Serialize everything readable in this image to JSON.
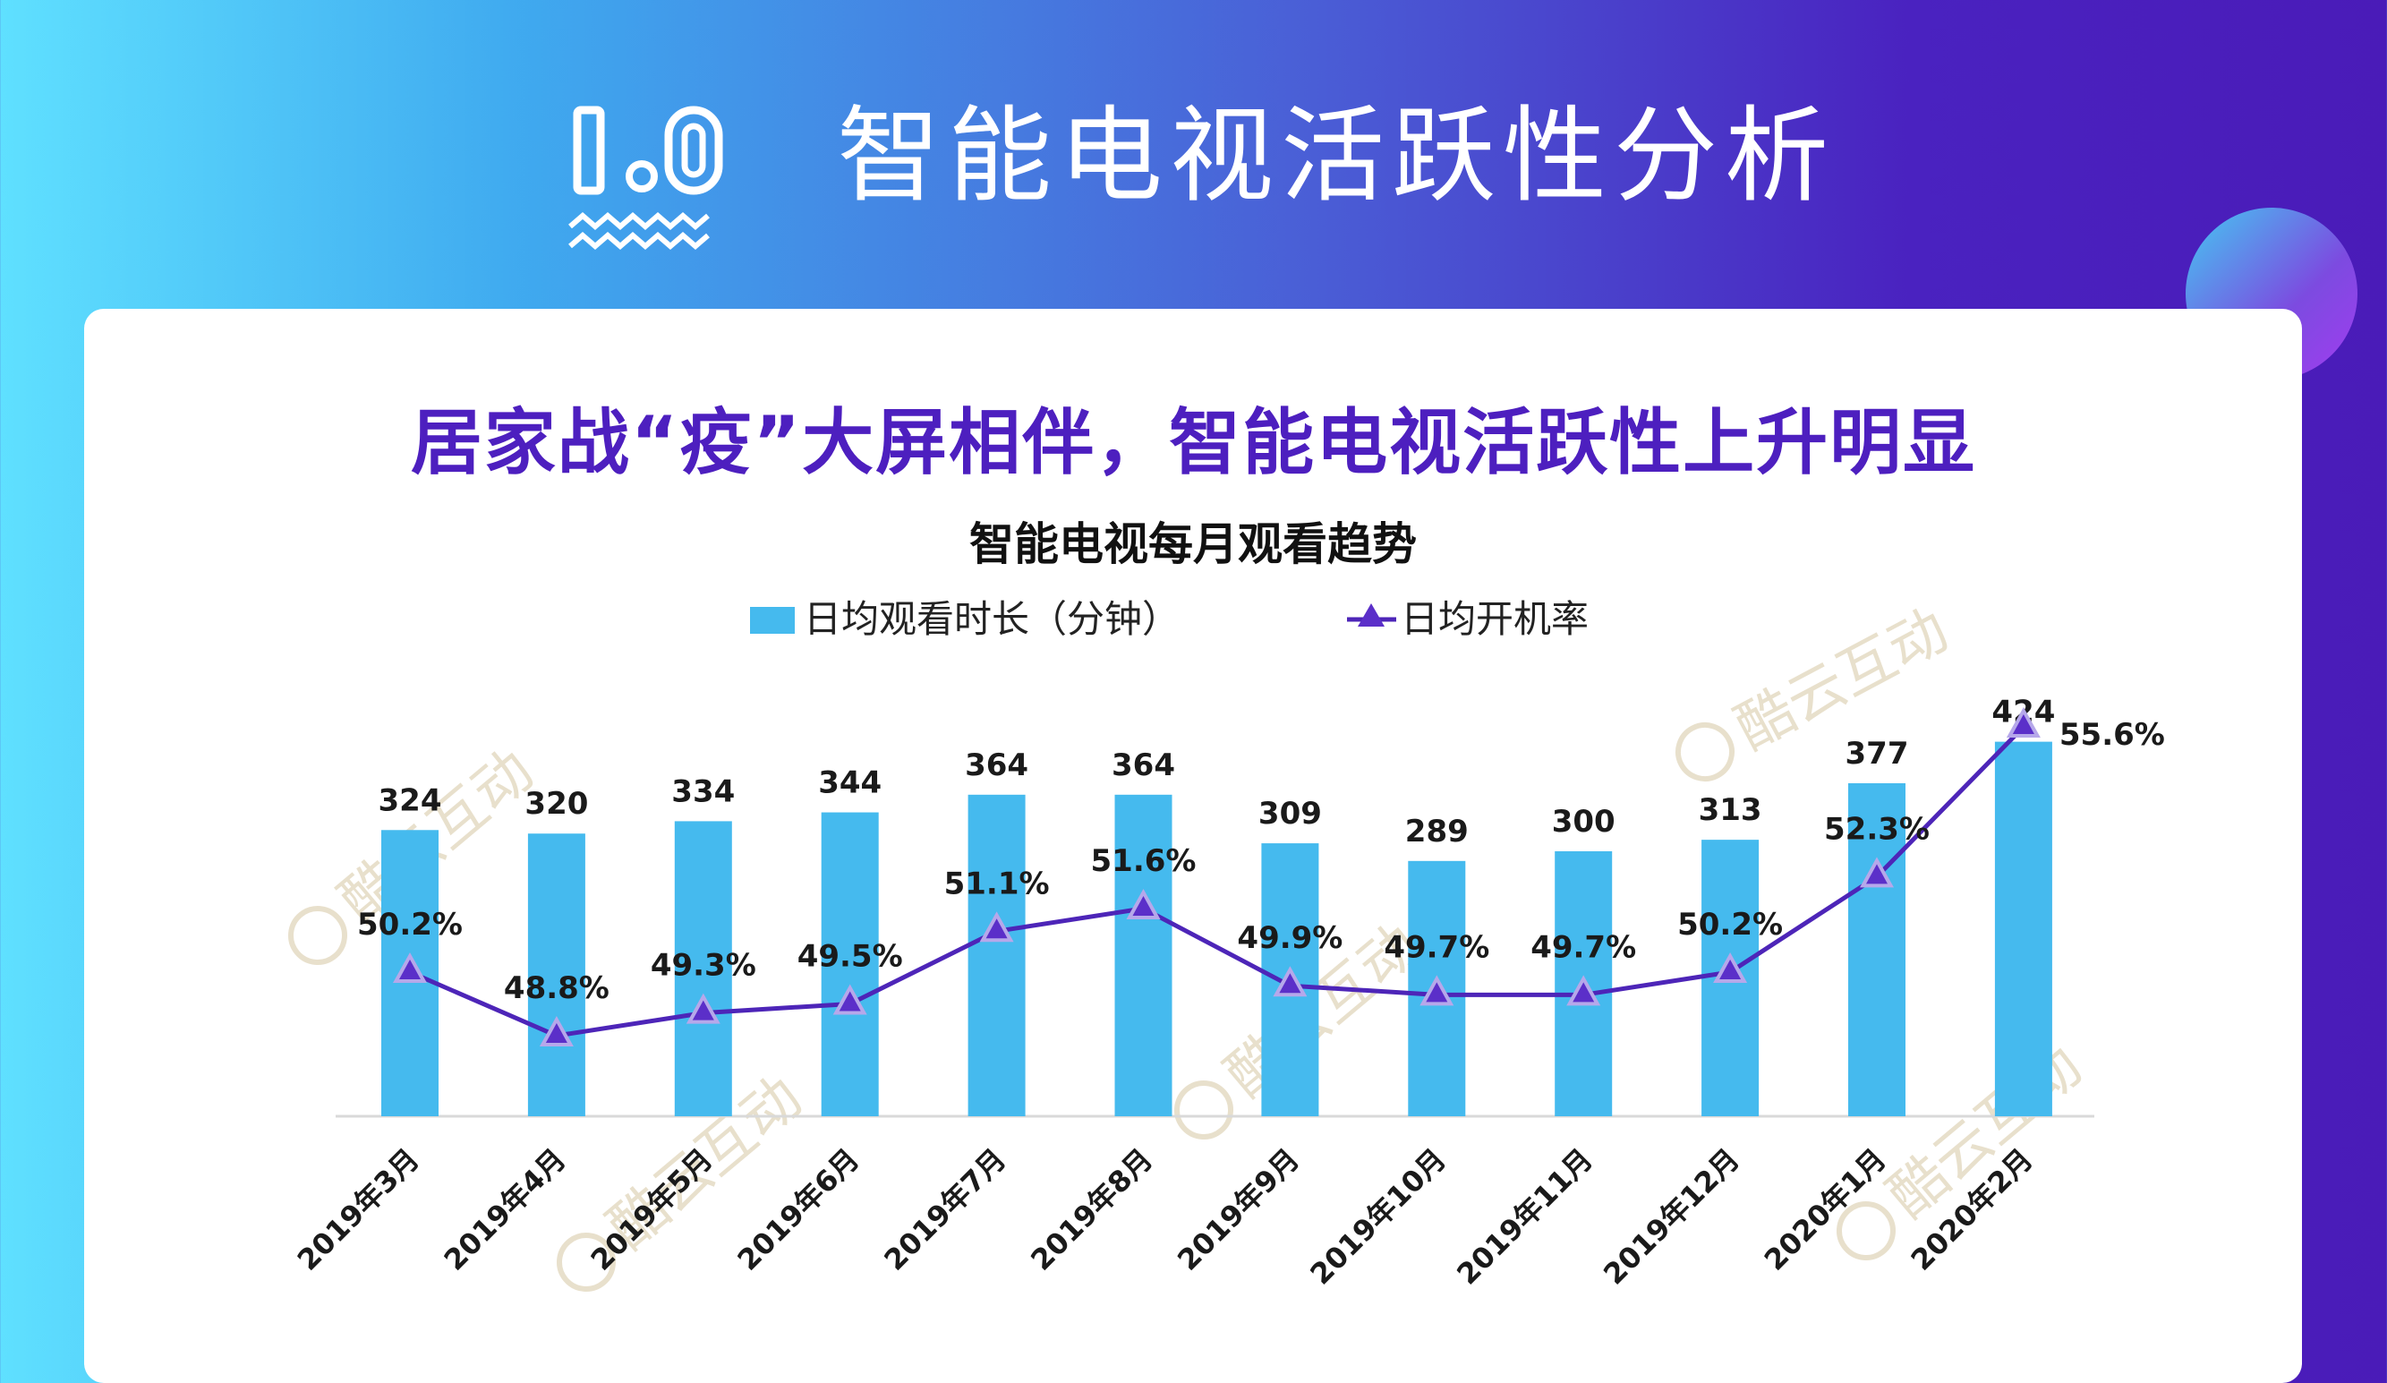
{
  "page": {
    "title": "智能电视活跃性分析",
    "headline": "居家战“疫”大屏相伴，智能电视活跃性上升明显",
    "watermark": "酷云互动"
  },
  "colors": {
    "bar": "#45baee",
    "line": "#4d25b8",
    "marker_fill": "#5b2fc9",
    "marker_halo": "#b6a8ea",
    "headline": "#4d1fbf",
    "label": "#1a1a1a"
  },
  "chart_data": {
    "type": "bar",
    "title": "智能电视每月观看趋势",
    "categories": [
      "2019年3月",
      "2019年4月",
      "2019年5月",
      "2019年6月",
      "2019年7月",
      "2019年8月",
      "2019年9月",
      "2019年10月",
      "2019年11月",
      "2019年12月",
      "2020年1月",
      "2020年2月"
    ],
    "series": [
      {
        "name": "日均观看时长（分钟）",
        "type": "bar",
        "values": [
          324,
          320,
          334,
          344,
          364,
          364,
          309,
          289,
          300,
          313,
          377,
          424
        ],
        "labels": [
          "324",
          "320",
          "334",
          "344",
          "364",
          "364",
          "309",
          "289",
          "300",
          "313",
          "377",
          "424"
        ]
      },
      {
        "name": "日均开机率",
        "type": "line",
        "values": [
          50.2,
          48.8,
          49.3,
          49.5,
          51.1,
          51.6,
          49.9,
          49.7,
          49.7,
          50.2,
          52.3,
          55.6
        ],
        "labels": [
          "50.2%",
          "48.8%",
          "49.3%",
          "49.5%",
          "51.1%",
          "51.6%",
          "49.9%",
          "49.7%",
          "49.7%",
          "50.2%",
          "52.3%",
          "55.6%"
        ]
      }
    ],
    "bar_axis_range": [
      0,
      430
    ],
    "line_axis_range": [
      47.5,
      56
    ],
    "gridlines": false,
    "legend_position": "top"
  }
}
